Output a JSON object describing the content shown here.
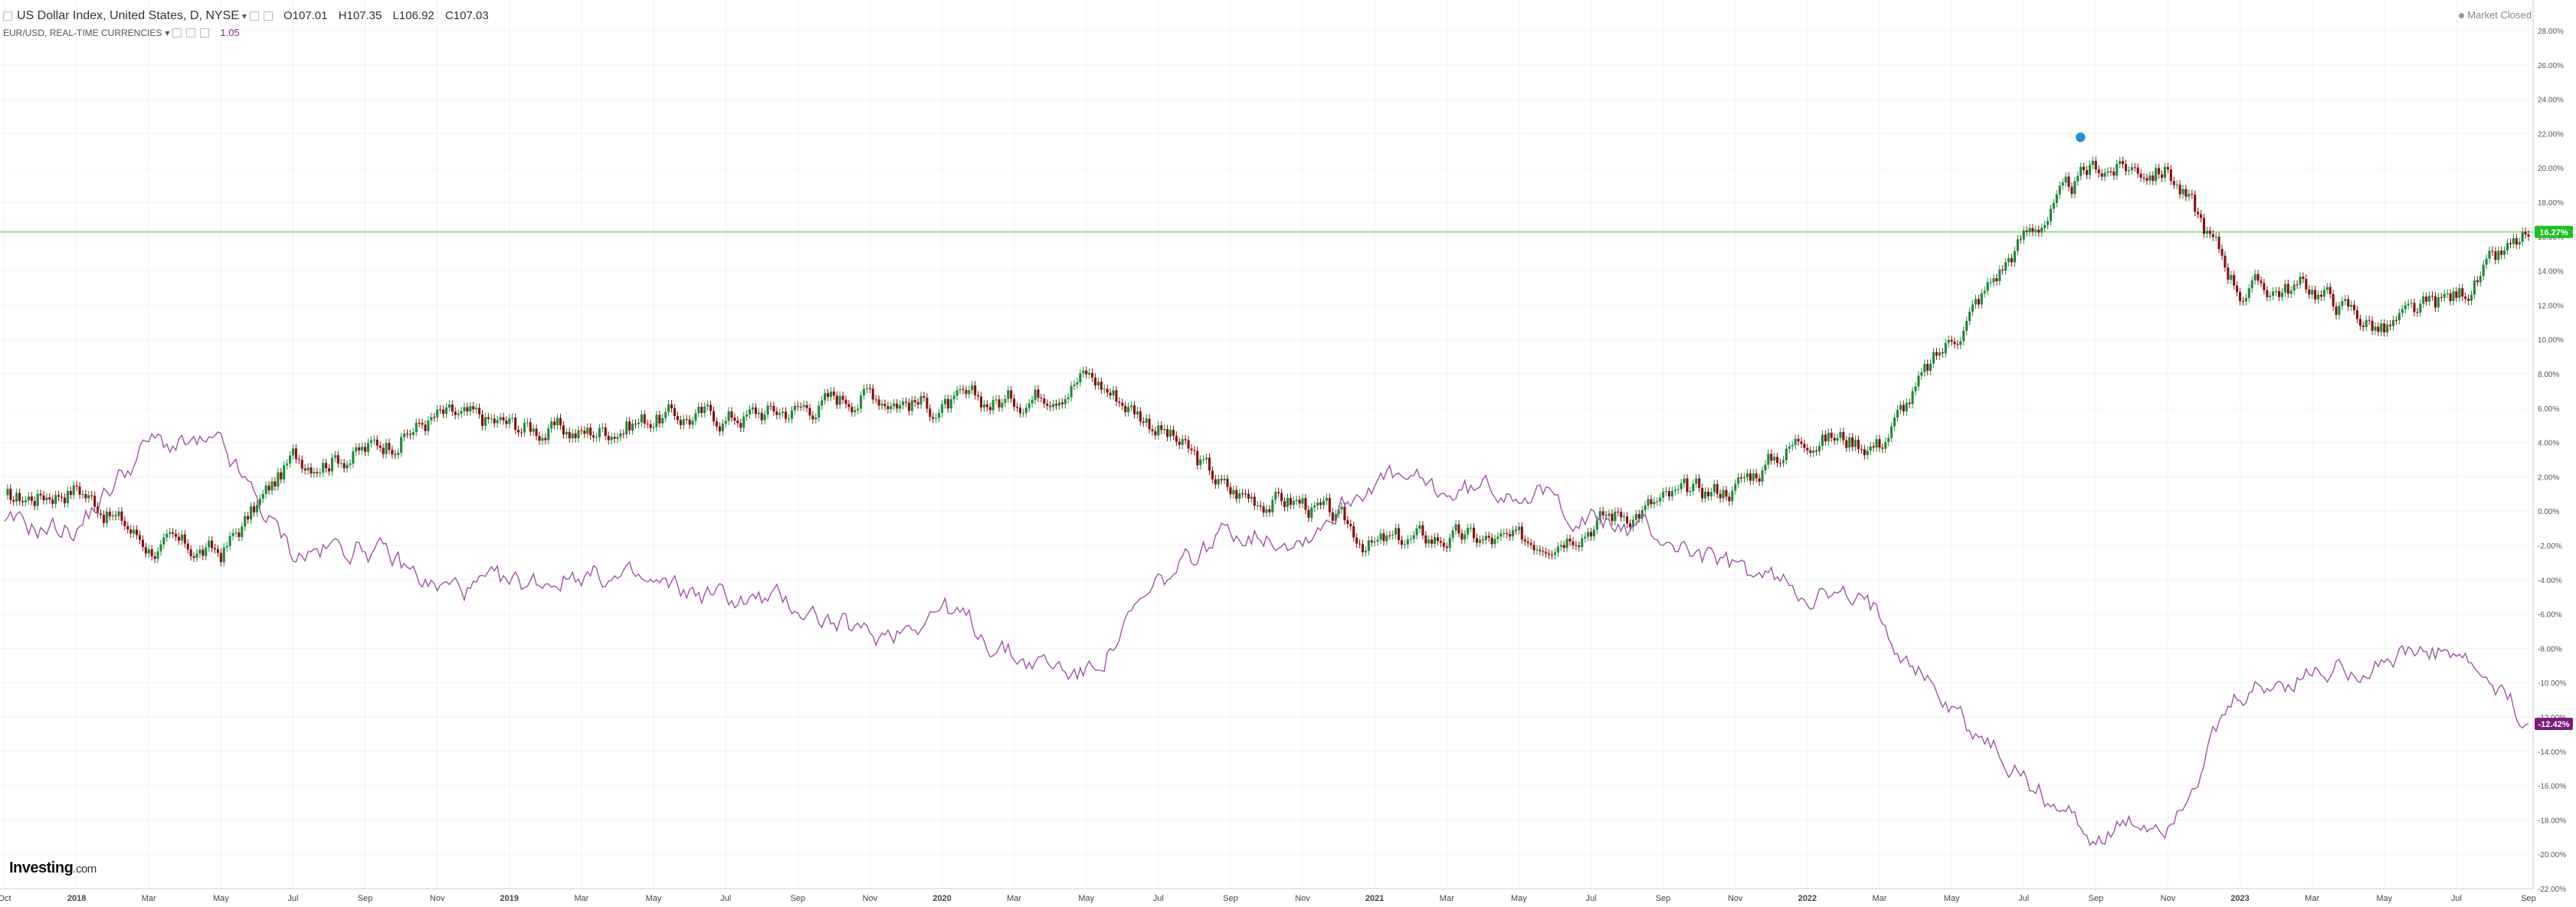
{
  "header": {
    "symbol_title": "US Dollar Index, United States, D, NYSE",
    "dropdown_glyph": "▾",
    "ohlc": {
      "open": "O107.01",
      "high": "H107.35",
      "low": "L106.92",
      "close": "C107.03"
    },
    "secondary_label": "EUR/USD, REAL-TIME CURRENCIES",
    "secondary_value": "1.05"
  },
  "market_status": "Market Closed",
  "brand": {
    "name": "Investing",
    "suffix": ".com"
  },
  "colors": {
    "up": "#1e8c3a",
    "down": "#8b1010",
    "secondary_line": "#a352a8",
    "highlight_line": "#6fe06f",
    "primary_badge": "#21c021",
    "secondary_badge": "#7c1c7c",
    "grid": "#f2f2f2"
  },
  "chart_data": {
    "type": "line",
    "ylabel_unit": "%",
    "ylim": [
      -22,
      28
    ],
    "y_ticks": [
      "28.00%",
      "26.00%",
      "24.00%",
      "22.00%",
      "20.00%",
      "18.00%",
      "16.00%",
      "14.00%",
      "12.00%",
      "10.00%",
      "8.00%",
      "6.00%",
      "4.00%",
      "2.00%",
      "0.00%",
      "-2.00%",
      "-4.00%",
      "-6.00%",
      "-8.00%",
      "-10.00%",
      "-12.00%",
      "-14.00%",
      "-16.00%",
      "-18.00%",
      "-20.00%",
      "-22.00%"
    ],
    "x_ticks": [
      "Oct",
      "2018",
      "Mar",
      "May",
      "Jul",
      "Sep",
      "Nov",
      "2019",
      "Mar",
      "May",
      "Jul",
      "Sep",
      "Nov",
      "2020",
      "Mar",
      "May",
      "Jul",
      "Sep",
      "Nov",
      "2021",
      "Mar",
      "May",
      "Jul",
      "Sep",
      "Nov",
      "2022",
      "Mar",
      "May",
      "Jul",
      "Sep",
      "Nov",
      "2023",
      "Mar",
      "May",
      "Jul",
      "Sep"
    ],
    "horizontal_line": 16.27,
    "badges": {
      "primary": "16.27%",
      "secondary": "-12.42%"
    },
    "series": [
      {
        "name": "US Dollar Index, United States, D, NYSE",
        "style": "candlestick",
        "x": [
          "Oct",
          "2018",
          "Mar",
          "May",
          "Jul",
          "Sep",
          "Nov",
          "2019",
          "Mar",
          "May",
          "Jul",
          "Sep",
          "Nov",
          "2020",
          "Mar",
          "May",
          "Jul",
          "Sep",
          "Nov",
          "2021",
          "Mar",
          "May",
          "Jul",
          "Sep",
          "Nov",
          "2022",
          "Mar",
          "May",
          "Jul",
          "Sep",
          "Nov",
          "2023",
          "Mar",
          "May",
          "Jul",
          "Sep"
        ],
        "values": [
          0.5,
          1.5,
          -2.0,
          -2.5,
          3.0,
          3.5,
          5.5,
          5.0,
          4.5,
          5.5,
          5.5,
          6.0,
          7.0,
          6.0,
          6.5,
          8.0,
          5.0,
          1.0,
          0.5,
          -2.0,
          -1.5,
          -2.0,
          -0.5,
          0.5,
          1.5,
          4.5,
          4.0,
          10.0,
          16.0,
          20.0,
          20.0,
          13.0,
          13.0,
          10.5,
          12.5,
          16.0
        ]
      },
      {
        "name": "EUR/USD, REAL-TIME CURRENCIES",
        "style": "line",
        "x": [
          "Oct",
          "2018",
          "Mar",
          "May",
          "Jul",
          "Sep",
          "Nov",
          "2019",
          "Mar",
          "May",
          "Jul",
          "Sep",
          "Nov",
          "2020",
          "Mar",
          "May",
          "Jul",
          "Sep",
          "Nov",
          "2021",
          "Mar",
          "May",
          "Jul",
          "Sep",
          "Nov",
          "2022",
          "Mar",
          "May",
          "Jul",
          "Sep",
          "Nov",
          "2023",
          "Mar",
          "May",
          "Jul",
          "Sep"
        ],
        "values": [
          -1.0,
          -1.0,
          4.0,
          3.5,
          -2.5,
          -2.0,
          -4.5,
          -4.5,
          -3.5,
          -4.5,
          -5.0,
          -5.5,
          -7.5,
          -5.5,
          -8.5,
          -9.5,
          -4.5,
          -1.0,
          -1.5,
          2.0,
          1.0,
          1.5,
          -0.5,
          -1.5,
          -3.5,
          -4.5,
          -6.0,
          -11.5,
          -15.5,
          -19.0,
          -18.0,
          -11.0,
          -9.5,
          -8.5,
          -8.5,
          -12.4
        ]
      }
    ]
  }
}
